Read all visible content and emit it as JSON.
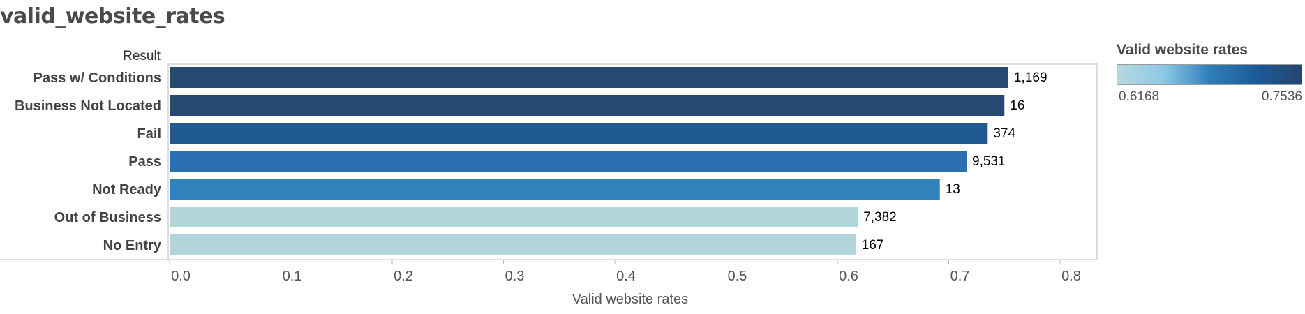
{
  "page_title": "valid_website_rates",
  "legend": {
    "title": "Valid website rates",
    "min_label": "0.6168",
    "max_label": "0.7536",
    "gradient_colors": [
      "#b7d8e0",
      "#8cc9e6",
      "#2f7fbc",
      "#1d5a99",
      "#25456f"
    ]
  },
  "chart_data": {
    "type": "bar",
    "orientation": "horizontal",
    "row_header": "Result",
    "categories": [
      "Pass w/ Conditions",
      "Business Not Located",
      "Fail",
      "Pass",
      "Not Ready",
      "Out of Business",
      "No Entry"
    ],
    "values": [
      0.7536,
      0.75,
      0.735,
      0.716,
      0.692,
      0.6183,
      0.6168
    ],
    "data_labels": [
      "1,169",
      "16",
      "374",
      "9,531",
      "13",
      "7,382",
      "167"
    ],
    "bar_colors": [
      "#264873",
      "#264873",
      "#215993",
      "#2a6faf",
      "#3181bb",
      "#b2d5dc",
      "#b2d5dc"
    ],
    "xlabel": "Valid website rates",
    "xlim": [
      0,
      0.8
    ],
    "xticks": [
      "0.0",
      "0.1",
      "0.2",
      "0.3",
      "0.4",
      "0.5",
      "0.6",
      "0.7",
      "0.8"
    ],
    "grid": false,
    "legend_position": "top-right"
  }
}
